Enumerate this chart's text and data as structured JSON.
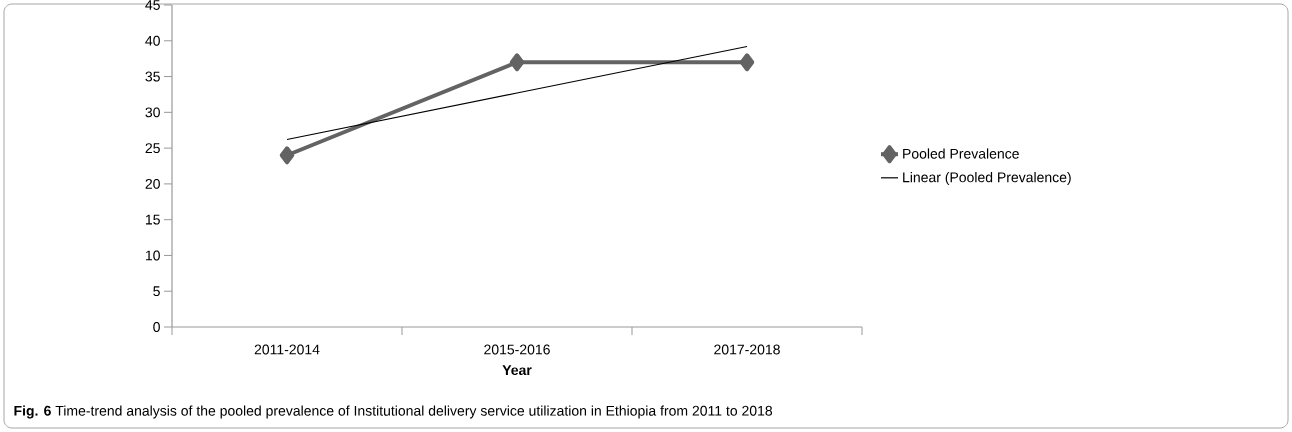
{
  "chart_data": {
    "type": "line",
    "categories": [
      "2011-2014",
      "2015-2016",
      "2017-2018"
    ],
    "series": [
      {
        "name": "Pooled Prevalence",
        "color": "#636363",
        "values": [
          24,
          37,
          37
        ],
        "marker": "diamond"
      },
      {
        "name": "Linear (Pooled Prevalence)",
        "color": "#000000",
        "values": [
          26.2,
          32.7,
          39.2
        ],
        "marker": "none"
      }
    ],
    "xlabel": "Year",
    "ylim": [
      0,
      45
    ],
    "yticks": [
      0,
      5,
      10,
      15,
      20,
      25,
      30,
      35,
      40,
      45
    ],
    "legend": "right",
    "grid": false,
    "annotations": [
      "**Fig. 6** Time-trend analysis of the pooled prevalence of Institutional delivery service utilization in Ethiopia from 2011 to 2018"
    ]
  }
}
